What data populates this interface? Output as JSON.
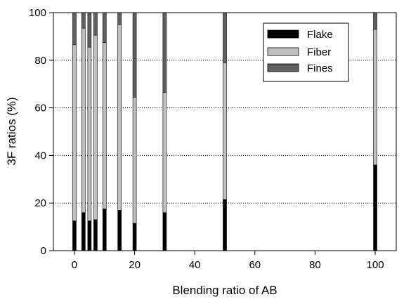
{
  "chart_data": {
    "type": "bar",
    "stacked": true,
    "title": "",
    "xlabel": "Blending ratio of AB",
    "ylabel": "3F ratios (%)",
    "xlim": [
      -7,
      107
    ],
    "ylim": [
      0,
      100
    ],
    "xticks": [
      0,
      20,
      40,
      60,
      80,
      100
    ],
    "yticks": [
      0,
      20,
      40,
      60,
      80,
      100
    ],
    "grid": "horizontal dotted",
    "legend_position": "top-right",
    "x": [
      0,
      3,
      5,
      7,
      10,
      15,
      20,
      30,
      50,
      100
    ],
    "series": [
      {
        "name": "Flake",
        "color": "#000000",
        "values": [
          12.5,
          16,
          12.5,
          13,
          17.5,
          17,
          11.5,
          16,
          21.5,
          36
        ]
      },
      {
        "name": "Fiber",
        "color": "#c0c0c0",
        "values": [
          74,
          77.5,
          73,
          77.5,
          70,
          78,
          53,
          50.5,
          57.5,
          57
        ]
      },
      {
        "name": "Fines",
        "color": "#606060",
        "values": [
          13.5,
          6.5,
          14.5,
          9.5,
          12.5,
          5,
          35.5,
          33.5,
          21,
          7
        ]
      }
    ]
  }
}
